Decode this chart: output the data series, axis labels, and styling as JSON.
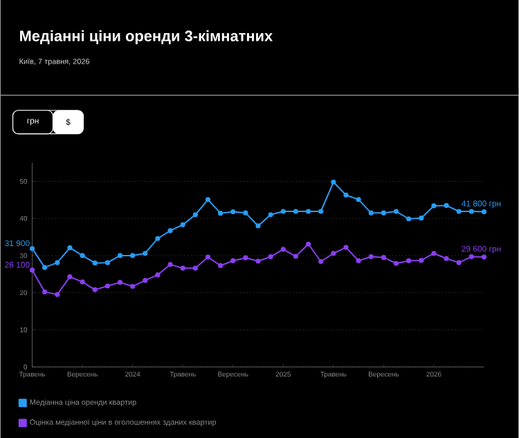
{
  "chart_data": {
    "type": "line",
    "title": "Медіанні ціни оренди 3-кімнатних",
    "subtitle": "Київ, 7 травня, 2026",
    "annotations": [
      "грн",
      "$",
      {
        "text": "31 900",
        "x": "2023-05",
        "y": 31.9
      },
      {
        "text": "41 800 грн",
        "x": "2026-05",
        "y": 41.8
      },
      {
        "text": "26 100",
        "x": "2023-05",
        "y": 26.1
      },
      {
        "text": "29 600 грн",
        "x": "2026-05",
        "y": 29.6
      }
    ],
    "x": [
      "2023-05",
      "2023-06",
      "2023-07",
      "2023-08",
      "2023-09",
      "2023-10",
      "2023-11",
      "2023-12",
      "2024-01",
      "2024-02",
      "2024-03",
      "2024-04",
      "2024-05",
      "2024-06",
      "2024-07",
      "2024-08",
      "2024-09",
      "2024-10",
      "2024-11",
      "2024-12",
      "2025-01",
      "2025-02",
      "2025-03",
      "2025-04",
      "2025-05",
      "2025-06",
      "2025-07",
      "2025-08",
      "2025-09",
      "2025-10",
      "2025-11",
      "2025-12",
      "2026-01",
      "2026-02",
      "2026-03",
      "2026-04",
      "2026-05"
    ],
    "xlim": [
      "2023-05",
      "2026-05"
    ],
    "xticks": [
      {
        "value": "2023-05",
        "label": "Травень"
      },
      {
        "value": "2023-09",
        "label": "Вересень"
      },
      {
        "value": "2024-01",
        "label": "2024"
      },
      {
        "value": "2024-05",
        "label": "Травень"
      },
      {
        "value": "2024-09",
        "label": "Вересень"
      },
      {
        "value": "2025-01",
        "label": "2025"
      },
      {
        "value": "2025-05",
        "label": "Травень"
      },
      {
        "value": "2025-09",
        "label": "Вересень"
      },
      {
        "value": "2026-01",
        "label": "2026"
      }
    ],
    "ylim": [
      0,
      55
    ],
    "yticks": [
      0,
      10,
      20,
      30,
      40,
      50
    ],
    "series": [
      {
        "name": "Медіанна ціна оренди квартир",
        "color": "#2a9df4",
        "values": [
          31.9,
          26.8,
          28.1,
          32.1,
          30.0,
          28.0,
          28.1,
          30.0,
          30.0,
          30.6,
          34.6,
          36.7,
          38.3,
          41.0,
          45.1,
          41.4,
          41.8,
          41.5,
          38.0,
          41.0,
          41.9,
          41.9,
          41.9,
          41.9,
          49.8,
          46.3,
          45.1,
          41.5,
          41.5,
          41.9,
          39.9,
          40.1,
          43.4,
          43.5,
          41.9,
          41.9,
          41.8
        ]
      },
      {
        "name": "Оцінка медіанної ціни в оголошеннях зданих квартир",
        "color": "#8a3ff0",
        "values": [
          26.1,
          20.2,
          19.5,
          24.3,
          22.9,
          20.8,
          21.8,
          22.8,
          21.7,
          23.3,
          24.8,
          27.6,
          26.6,
          26.6,
          29.6,
          27.3,
          28.6,
          29.4,
          28.5,
          29.7,
          31.7,
          29.8,
          33.1,
          28.4,
          30.6,
          32.2,
          28.6,
          29.7,
          29.5,
          27.9,
          28.6,
          28.7,
          30.6,
          29.2,
          28.1,
          29.7,
          29.6
        ]
      }
    ],
    "grid": "y",
    "legend": "bottom",
    "marker": "circle",
    "line_style": "solid"
  }
}
